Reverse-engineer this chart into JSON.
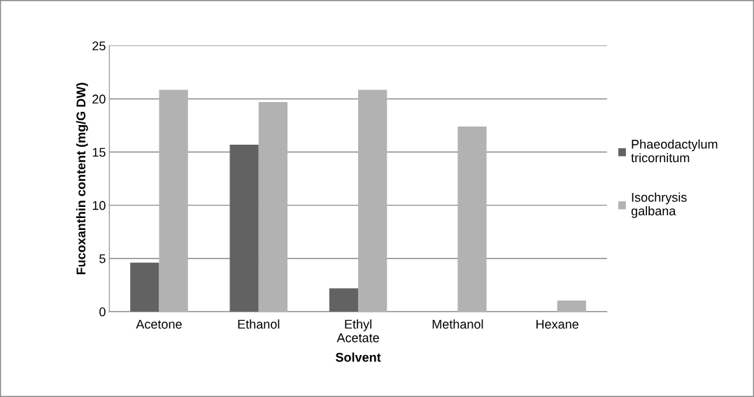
{
  "chart_data": {
    "type": "bar",
    "xlabel": "Solvent",
    "ylabel": "Fucoxanthin content (mg/G DW)",
    "categories": [
      "Acetone",
      "Ethanol",
      "Ethyl Acetate",
      "Methanol",
      "Hexane"
    ],
    "series": [
      {
        "name": "Phaeodactylum tricornitum",
        "color": "#626262",
        "values": [
          4.6,
          15.7,
          2.2,
          0,
          0
        ]
      },
      {
        "name": "Isochrysis galbana",
        "color": "#b2b2b2",
        "values": [
          20.85,
          19.7,
          20.85,
          17.4,
          1.05
        ]
      }
    ],
    "ylim": [
      0,
      25
    ],
    "yticks": [
      0,
      5,
      10,
      15,
      20,
      25
    ],
    "grid": "y",
    "legend": "right"
  }
}
